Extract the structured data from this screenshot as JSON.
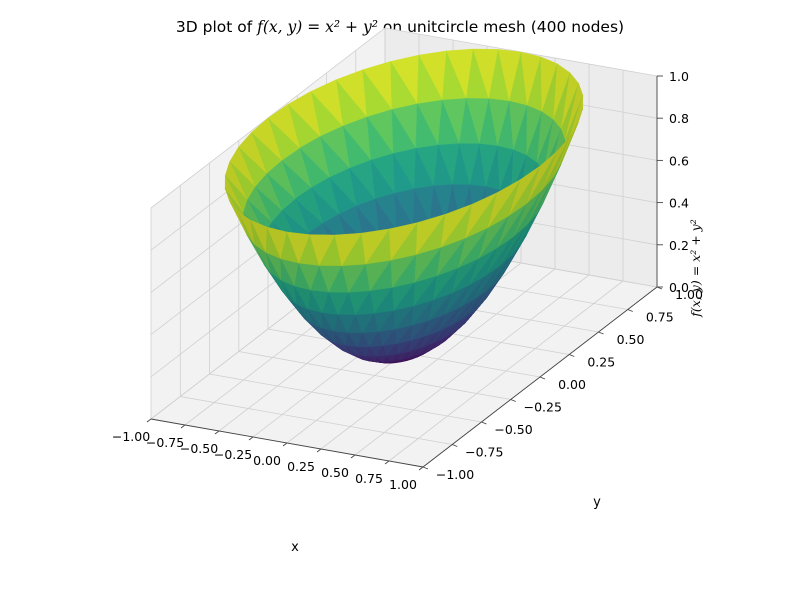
{
  "chart_data": {
    "type": "surface3d",
    "title_prefix": "3D plot of ",
    "title_formula": "f(x, y) = x² + y²",
    "title_suffix": " on unitcircle mesh (400 nodes)",
    "function": "f(x, y) = x^2 + y^2",
    "domain": "unit circle",
    "nodes": 400,
    "xlabel": "x",
    "ylabel": "y",
    "zlabel": "f(x, y) = x² + y²",
    "xlim": [
      -1.0,
      1.0
    ],
    "ylim": [
      -1.0,
      1.0
    ],
    "zlim": [
      0.0,
      1.0
    ],
    "xticks": [
      "−1.00",
      "−0.75",
      "−0.50",
      "−0.25",
      "0.00",
      "0.25",
      "0.50",
      "0.75",
      "1.00"
    ],
    "yticks": [
      "−1.00",
      "−0.75",
      "−0.50",
      "−0.25",
      "0.00",
      "0.25",
      "0.50",
      "0.75",
      "1.00"
    ],
    "zticks": [
      "0.0",
      "0.2",
      "0.4",
      "0.6",
      "0.8",
      "1.0"
    ],
    "colormap": "viridis",
    "grid": true
  }
}
